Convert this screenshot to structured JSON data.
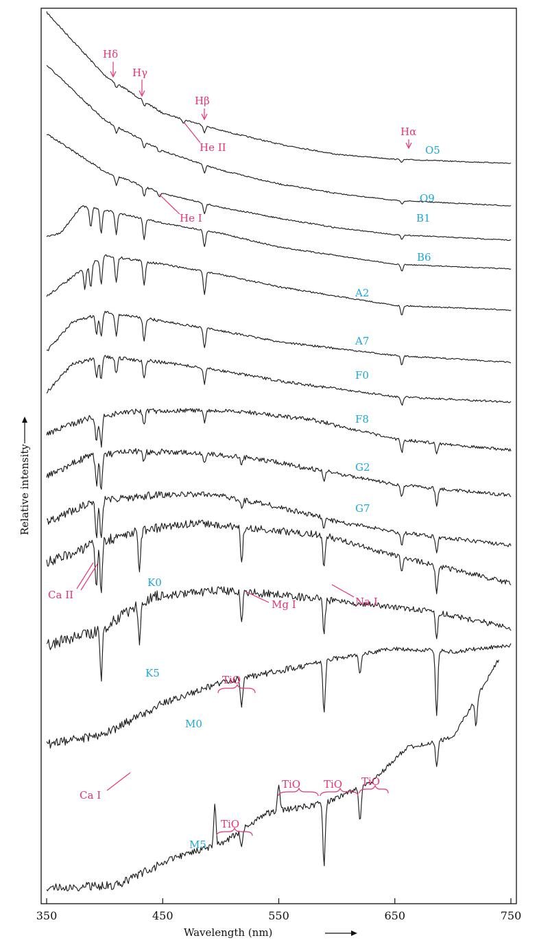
{
  "chart_data": {
    "type": "line",
    "xlabel": "Wavelength (nm)",
    "ylabel": "Relative intensity",
    "xlim": [
      350,
      750
    ],
    "x_ticks": [
      350,
      450,
      550,
      650,
      750
    ],
    "series": [
      {
        "name": "O5"
      },
      {
        "name": "O9"
      },
      {
        "name": "B1"
      },
      {
        "name": "B6"
      },
      {
        "name": "A2"
      },
      {
        "name": "A7"
      },
      {
        "name": "F0"
      },
      {
        "name": "F8"
      },
      {
        "name": "G2"
      },
      {
        "name": "G7"
      },
      {
        "name": "K0"
      },
      {
        "name": "K5"
      },
      {
        "name": "M0"
      },
      {
        "name": "M5"
      }
    ],
    "annotations": [
      {
        "text": "Hδ",
        "wavelength": 410
      },
      {
        "text": "Hγ",
        "wavelength": 434
      },
      {
        "text": "Hβ",
        "wavelength": 486
      },
      {
        "text": "Hα",
        "wavelength": 656
      },
      {
        "text": "He II",
        "wavelength": 468
      },
      {
        "text": "He I",
        "wavelength": 447
      },
      {
        "text": "Ca II",
        "wavelength": 395
      },
      {
        "text": "Mg I",
        "wavelength": 518
      },
      {
        "text": "Na I",
        "wavelength": 589
      },
      {
        "text": "TiO",
        "wavelength": 510
      },
      {
        "text": "Ca I",
        "wavelength": 423
      },
      {
        "text": "TiO",
        "wavelength": 495
      },
      {
        "text": "TiO",
        "wavelength": 555
      },
      {
        "text": "TiO",
        "wavelength": 600
      },
      {
        "text": "TiO",
        "wavelength": 635
      }
    ]
  },
  "colors": {
    "spectral_type": "#1aa7d9",
    "line_label": "#e8336e",
    "spectrum": "#1c1c1c"
  }
}
